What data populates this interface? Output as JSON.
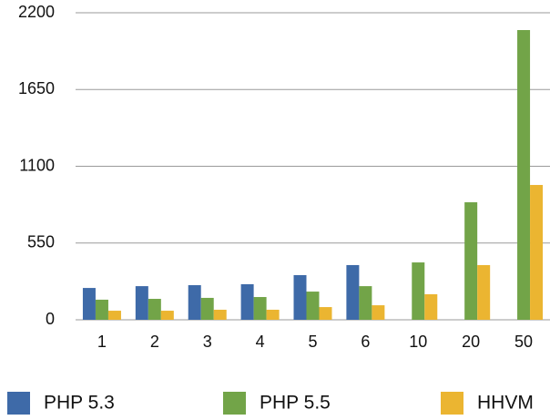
{
  "chart_data": {
    "type": "bar",
    "categories": [
      "1",
      "2",
      "3",
      "4",
      "5",
      "6",
      "10",
      "20",
      "50"
    ],
    "series": [
      {
        "name": "PHP 5.3",
        "color": "#3e6aa8",
        "values": [
          228,
          241,
          248,
          255,
          320,
          392,
          null,
          null,
          null
        ]
      },
      {
        "name": "PHP 5.5",
        "color": "#72a448",
        "values": [
          144,
          150,
          157,
          163,
          202,
          241,
          411,
          842,
          2076
        ]
      },
      {
        "name": "HHVM",
        "color": "#ebb531",
        "values": [
          65,
          65,
          72,
          72,
          91,
          104,
          183,
          392,
          966
        ]
      }
    ],
    "ylim": [
      0,
      2200
    ],
    "yticks": [
      0,
      550,
      1100,
      1650,
      2200
    ],
    "grid": true,
    "legend": "bottom"
  }
}
